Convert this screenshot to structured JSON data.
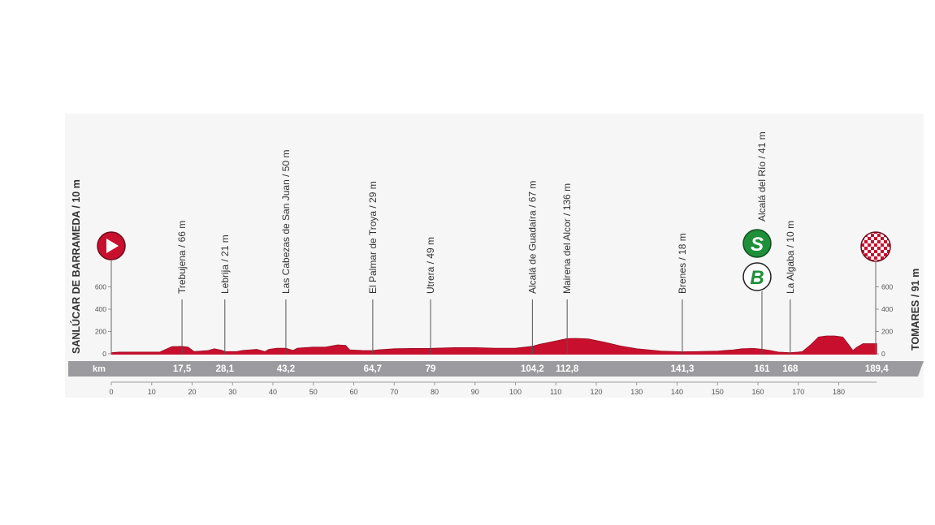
{
  "chart_data": {
    "type": "area",
    "title": "",
    "xlabel": "km",
    "ylabel": "",
    "xlim": [
      0,
      189.4
    ],
    "ylim": [
      0,
      600
    ],
    "x_ticks": [
      0,
      10,
      20,
      30,
      40,
      50,
      60,
      70,
      80,
      90,
      100,
      110,
      120,
      130,
      140,
      150,
      160,
      170,
      180
    ],
    "y_ticks": [
      0,
      200,
      400,
      600
    ],
    "grid": false,
    "start": {
      "label": "SANLÚCAR DE BARRAMEDA / 10 m",
      "icon": "start-play-icon"
    },
    "finish": {
      "label": "TOMARES / 91 m",
      "icon": "finish-checkered-icon"
    },
    "profile": {
      "x": [
        0,
        2,
        12,
        13.5,
        15,
        17.5,
        19,
        20.5,
        24,
        25.5,
        27.5,
        28.1,
        31,
        32.5,
        36,
        38,
        39,
        41,
        43.2,
        45,
        46,
        48,
        50,
        53,
        56,
        58,
        59,
        62,
        64.7,
        66,
        70,
        75,
        79,
        85,
        90,
        95,
        100,
        104.2,
        106,
        108,
        112.8,
        115,
        118,
        122,
        126,
        130,
        136,
        141.3,
        145,
        150,
        154,
        156,
        159,
        161,
        163,
        165,
        168,
        170,
        171,
        173,
        175,
        177,
        179,
        181,
        182.5,
        183.5,
        184.5,
        186,
        189.4
      ],
      "y": [
        10,
        15,
        15,
        40,
        65,
        66,
        60,
        20,
        30,
        45,
        30,
        21,
        20,
        30,
        40,
        20,
        40,
        50,
        50,
        30,
        50,
        55,
        60,
        60,
        80,
        75,
        35,
        30,
        29,
        35,
        45,
        48,
        49,
        55,
        55,
        50,
        50,
        67,
        85,
        100,
        136,
        138,
        134,
        105,
        70,
        45,
        25,
        18,
        20,
        25,
        35,
        45,
        48,
        41,
        30,
        15,
        10,
        15,
        20,
        80,
        150,
        160,
        160,
        150,
        80,
        30,
        60,
        91,
        91
      ]
    },
    "series": [
      {
        "points": [
          {
            "label": "Trebujena / 66 m",
            "km": 17.5,
            "alt": 66
          },
          {
            "label": "Lebrija / 21 m",
            "km": 28.1,
            "alt": 21
          },
          {
            "label": "Las Cabezas de San Juan / 50 m",
            "km": 43.2,
            "alt": 50
          },
          {
            "label": "El Palmar de Troya / 29 m",
            "km": 64.7,
            "alt": 29
          },
          {
            "label": "Utrera / 49 m",
            "km": 79,
            "alt": 49
          },
          {
            "label": "Alcalá de Guadaíra / 67 m",
            "km": 104.2,
            "alt": 67
          },
          {
            "label": "Mairena del Alcor / 136 m",
            "km": 112.8,
            "alt": 136
          },
          {
            "label": "Brenes / 18 m",
            "km": 141.3,
            "alt": 18
          },
          {
            "label": "Alcalá del Río / 41 m",
            "km": 161,
            "alt": 41
          },
          {
            "label": "La Algaba / 10 m",
            "km": 168,
            "alt": 10
          }
        ]
      }
    ],
    "km_labels": [
      "17,5",
      "28,1",
      "43,2",
      "64,7",
      "79",
      "104,2",
      "112,8",
      "141,3",
      "161",
      "168",
      "189,4"
    ],
    "sprint_badge": {
      "letter": "S",
      "km": 161
    },
    "bonus_badge": {
      "letter": "B",
      "km": 161
    },
    "colors": {
      "profile": "#c8102e",
      "profile_dark": "#9b0c22",
      "bar": "#9a9a9f",
      "sprint": "#1f8f3a",
      "start": "#c8102e"
    }
  }
}
